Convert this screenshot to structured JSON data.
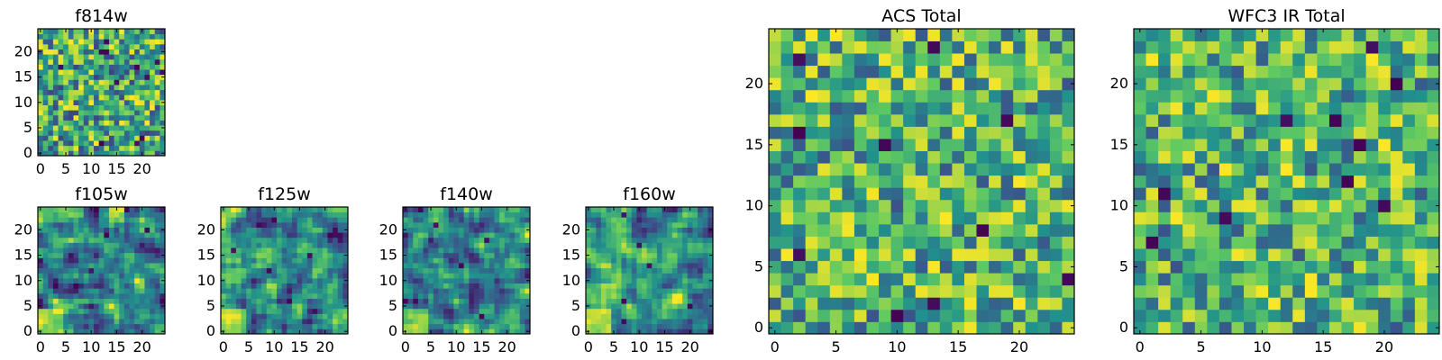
{
  "colormap": "viridis",
  "colors": {
    "viridis_stops": [
      "#440154",
      "#3b528b",
      "#21918c",
      "#5ec962",
      "#fde725"
    ],
    "axes_frame": "#000000",
    "background": "#ffffff"
  },
  "chart_data": [
    {
      "id": "f814w",
      "type": "heatmap",
      "title": "f814w",
      "grid": [
        25,
        25
      ],
      "xlim": [
        0,
        24
      ],
      "ylim": [
        0,
        24
      ],
      "xticks": [
        "0",
        "5",
        "10",
        "15",
        "20"
      ],
      "yticks": [
        "0",
        "5",
        "10",
        "15",
        "20"
      ],
      "pattern": "fine-noise",
      "seed": 11
    },
    {
      "id": "f105w",
      "type": "heatmap",
      "title": "f105w",
      "grid": [
        25,
        25
      ],
      "xlim": [
        0,
        24
      ],
      "ylim": [
        0,
        24
      ],
      "xticks": [
        "0",
        "5",
        "10",
        "15",
        "20"
      ],
      "yticks": [
        "0",
        "5",
        "10",
        "15",
        "20"
      ],
      "pattern": "smooth-noise",
      "seed": 23
    },
    {
      "id": "f125w",
      "type": "heatmap",
      "title": "f125w",
      "grid": [
        25,
        25
      ],
      "xlim": [
        0,
        24
      ],
      "ylim": [
        0,
        24
      ],
      "xticks": [
        "0",
        "5",
        "10",
        "15",
        "20"
      ],
      "yticks": [
        "0",
        "5",
        "10",
        "15",
        "20"
      ],
      "pattern": "smooth-noise",
      "seed": 37
    },
    {
      "id": "f140w",
      "type": "heatmap",
      "title": "f140w",
      "grid": [
        25,
        25
      ],
      "xlim": [
        0,
        24
      ],
      "ylim": [
        0,
        24
      ],
      "xticks": [
        "0",
        "5",
        "10",
        "15",
        "20"
      ],
      "yticks": [
        "0",
        "5",
        "10",
        "15",
        "20"
      ],
      "pattern": "smooth-noise",
      "seed": 41
    },
    {
      "id": "f160w",
      "type": "heatmap",
      "title": "f160w",
      "grid": [
        25,
        25
      ],
      "xlim": [
        0,
        24
      ],
      "ylim": [
        0,
        24
      ],
      "xticks": [
        "0",
        "5",
        "10",
        "15",
        "20"
      ],
      "yticks": [
        "0",
        "5",
        "10",
        "15",
        "20"
      ],
      "pattern": "smooth-noise",
      "seed": 53
    },
    {
      "id": "acs_total",
      "type": "heatmap",
      "title": "ACS Total",
      "grid": [
        25,
        25
      ],
      "xlim": [
        0,
        24
      ],
      "ylim": [
        0,
        24
      ],
      "xticks": [
        "0",
        "5",
        "10",
        "15",
        "20"
      ],
      "yticks": [
        "0",
        "5",
        "10",
        "15",
        "20"
      ],
      "pattern": "block-noise",
      "seed": 67
    },
    {
      "id": "wfc3_ir_total",
      "type": "heatmap",
      "title": "WFC3 IR Total",
      "grid": [
        25,
        25
      ],
      "xlim": [
        0,
        24
      ],
      "ylim": [
        0,
        24
      ],
      "xticks": [
        "0",
        "5",
        "10",
        "15",
        "20"
      ],
      "yticks": [
        "0",
        "5",
        "10",
        "15",
        "20"
      ],
      "pattern": "block-noise",
      "seed": 79
    }
  ]
}
